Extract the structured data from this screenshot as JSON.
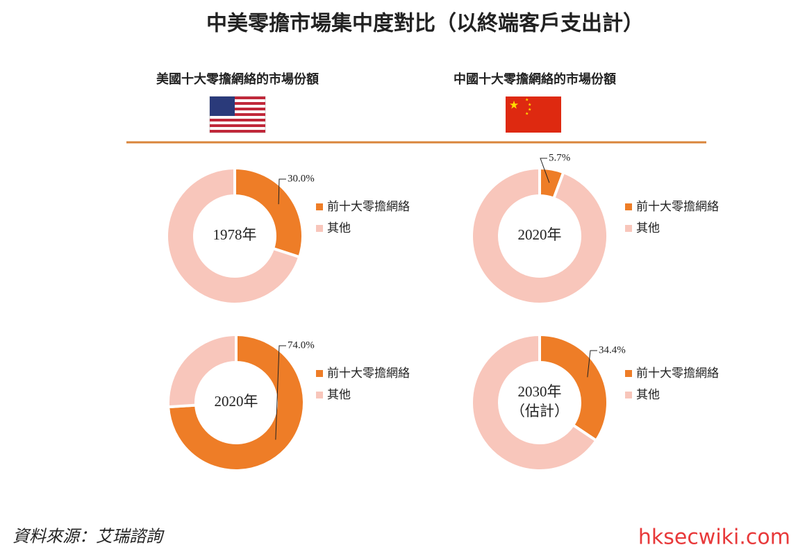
{
  "title": "中美零擔市場集中度對比（以終端客戶支出計）",
  "headers": [
    "美國十大零擔網絡的市場份額",
    "中國十大零擔網絡的市場份額"
  ],
  "source": "資料來源：艾瑞諮詢",
  "watermark": "hksecwiki.com",
  "chart_data": [
    {
      "type": "donut",
      "center_label": [
        "1978年"
      ],
      "categories": [
        "前十大零擔網絡",
        "其他"
      ],
      "values": [
        30.0,
        70.0
      ],
      "value_labels": [
        "30.0%",
        null
      ],
      "colors": [
        "#ee7d27",
        "#f8c6bb"
      ]
    },
    {
      "type": "donut",
      "center_label": [
        "2020年"
      ],
      "categories": [
        "前十大零擔網絡",
        "其他"
      ],
      "values": [
        5.7,
        94.3
      ],
      "value_labels": [
        "5.7%",
        null
      ],
      "colors": [
        "#ee7d27",
        "#f8c6bb"
      ]
    },
    {
      "type": "donut",
      "center_label": [
        "2020年"
      ],
      "categories": [
        "前十大零擔網絡",
        "其他"
      ],
      "values": [
        74.0,
        26.0
      ],
      "value_labels": [
        "74.0%",
        null
      ],
      "colors": [
        "#ee7d27",
        "#f8c6bb"
      ]
    },
    {
      "type": "donut",
      "center_label": [
        "2030年",
        "（估計）"
      ],
      "categories": [
        "前十大零擔網絡",
        "其他"
      ],
      "values": [
        34.4,
        65.6
      ],
      "value_labels": [
        "34.4%",
        null
      ],
      "colors": [
        "#ee7d27",
        "#f8c6bb"
      ]
    }
  ]
}
